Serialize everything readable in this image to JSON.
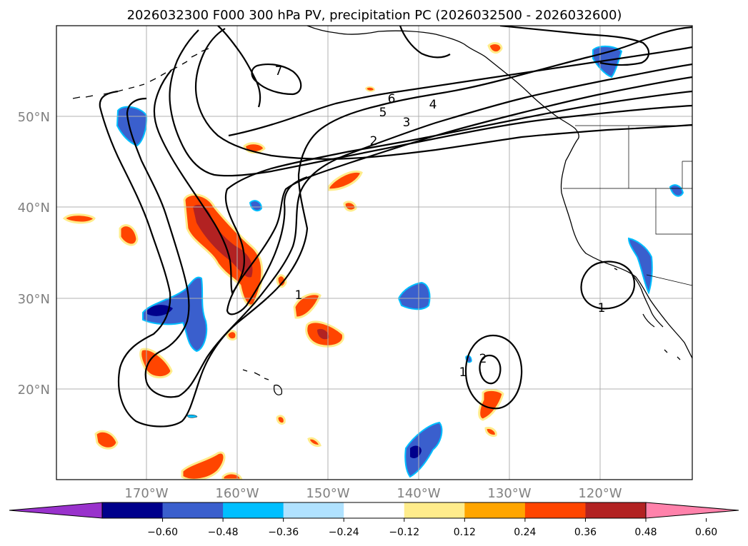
{
  "title": "2026032300 F000 300 hPa PV, precipitation PC (2026032500 - 2026032600)",
  "lat_labels": [
    "50°N",
    "40°N",
    "30°N",
    "20°N"
  ],
  "lon_labels": [
    "170°W",
    "160°W",
    "150°W",
    "140°W",
    "130°W",
    "120°W"
  ],
  "colorbar": {
    "ticks": [
      "−0.60",
      "−0.48",
      "−0.36",
      "−0.24",
      "−0.12",
      "0.12",
      "0.24",
      "0.36",
      "0.48",
      "0.60"
    ],
    "colors": [
      "#9932cc",
      "#00008b",
      "#3a5fcd",
      "#00bfff",
      "#b0e2ff",
      "#ffffff",
      "#ffec8b",
      "#ffa500",
      "#ff4500",
      "#b22222",
      "#ff82ab"
    ]
  },
  "contour_labels": {
    "c1a": "1",
    "c1b": "1",
    "c1c": "1",
    "c2a": "2",
    "c2b": "2",
    "c3": "3",
    "c4": "4",
    "c5": "5",
    "c6": "6",
    "c7": "7"
  }
}
